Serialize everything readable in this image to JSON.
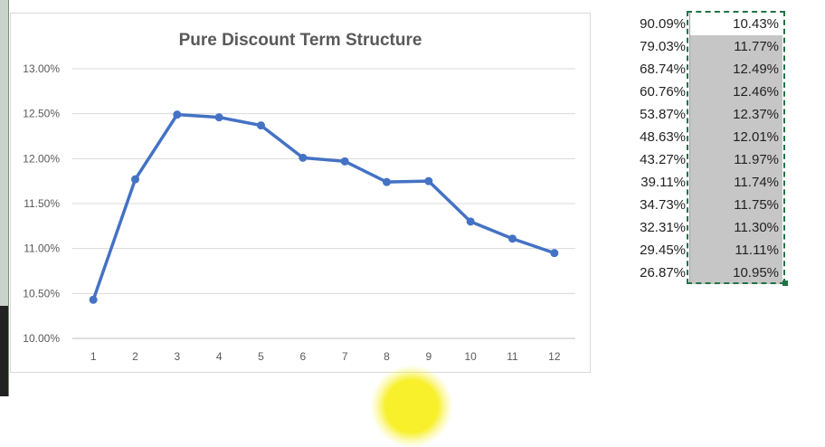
{
  "chart_data": {
    "type": "line",
    "title": "Pure Discount Term Structure",
    "x": [
      1,
      2,
      3,
      4,
      5,
      6,
      7,
      8,
      9,
      10,
      11,
      12
    ],
    "x_tick_labels": [
      "1",
      "2",
      "3",
      "4",
      "5",
      "6",
      "7",
      "8",
      "9",
      "10",
      "11",
      "12"
    ],
    "series": [
      {
        "values": [
          10.43,
          11.77,
          12.49,
          12.46,
          12.37,
          12.01,
          11.97,
          11.74,
          11.75,
          11.3,
          11.11,
          10.95
        ],
        "color": "#4472c4"
      }
    ],
    "ylim": [
      10.0,
      13.0
    ],
    "y_ticks": [
      10.0,
      10.5,
      11.0,
      11.5,
      12.0,
      12.5,
      13.0
    ],
    "y_tick_labels": [
      "10.00%",
      "10.50%",
      "11.00%",
      "11.50%",
      "12.00%",
      "12.50%",
      "13.00%"
    ],
    "grid": true,
    "xlabel": "",
    "ylabel": ""
  },
  "sheet": {
    "rows": [
      {
        "a": "90.09%",
        "b": "10.43%"
      },
      {
        "a": "79.03%",
        "b": "11.77%"
      },
      {
        "a": "68.74%",
        "b": "12.49%"
      },
      {
        "a": "60.76%",
        "b": "12.46%"
      },
      {
        "a": "53.87%",
        "b": "12.37%"
      },
      {
        "a": "48.63%",
        "b": "12.01%"
      },
      {
        "a": "43.27%",
        "b": "11.97%"
      },
      {
        "a": "39.11%",
        "b": "11.74%"
      },
      {
        "a": "34.73%",
        "b": "11.75%"
      },
      {
        "a": "32.31%",
        "b": "11.30%"
      },
      {
        "a": "29.45%",
        "b": "11.11%"
      },
      {
        "a": "26.87%",
        "b": "10.95%"
      }
    ],
    "selection_color": "#217346"
  }
}
